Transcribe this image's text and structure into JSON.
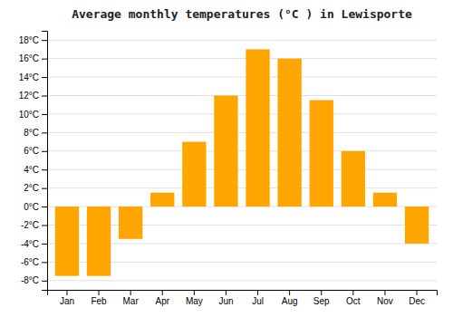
{
  "chart_data": {
    "type": "bar",
    "title": "Average monthly temperatures (°C ) in Lewisporte",
    "categories": [
      "Jan",
      "Feb",
      "Mar",
      "Apr",
      "May",
      "Jun",
      "Jul",
      "Aug",
      "Sep",
      "Oct",
      "Nov",
      "Dec"
    ],
    "values": [
      -7.5,
      -7.5,
      -3.5,
      1.5,
      7.0,
      12.0,
      17.0,
      16.0,
      11.5,
      6.0,
      1.5,
      -4.0
    ],
    "color": "#FFA500",
    "ylim": [
      -9,
      19
    ],
    "yticks": [
      {
        "value": -8,
        "label": "-8°C"
      },
      {
        "value": -6,
        "label": "-6°C"
      },
      {
        "value": -4,
        "label": "-4°C"
      },
      {
        "value": -2,
        "label": "-2°C"
      },
      {
        "value": 0,
        "label": "0°C"
      },
      {
        "value": 2,
        "label": "2°C"
      },
      {
        "value": 4,
        "label": "4°C"
      },
      {
        "value": 6,
        "label": "6°C"
      },
      {
        "value": 8,
        "label": "8°C"
      },
      {
        "value": 10,
        "label": "10°C"
      },
      {
        "value": 12,
        "label": "12°C"
      },
      {
        "value": 14,
        "label": "14°C"
      },
      {
        "value": 16,
        "label": "16°C"
      },
      {
        "value": 18,
        "label": "18°C"
      }
    ],
    "grid": true
  }
}
